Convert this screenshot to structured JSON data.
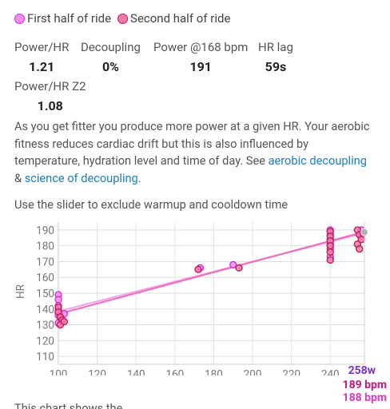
{
  "legend": {
    "first_half": "First half of ride",
    "second_half": "Second half of ride"
  },
  "stats": {
    "power_hr": {
      "label": "Power/HR",
      "value": "1.21"
    },
    "decoupling": {
      "label": "Decoupling",
      "value": "0%"
    },
    "power_at_hr": {
      "label": "Power @168 bpm",
      "value": "191"
    },
    "hr_lag": {
      "label": "HR lag",
      "value": "59s"
    },
    "power_hr_z2": {
      "label": "Power/HR Z2",
      "value": "1.08"
    }
  },
  "description": {
    "text": "As you get fitter you produce more power at a given HR. Your aerobic fitness reduces cardiac drift but this is also influenced by temperature, hydration level and time of day. See ",
    "link1": "aerobic decoupling",
    "between": " & ",
    "link2": "science of decoupling",
    "end": "."
  },
  "slider_hint": "Use the slider to exclude warmup and cooldown time",
  "readout": {
    "power": "258w",
    "hr_first": "189 bpm",
    "hr_second": "188 bpm"
  },
  "bottom_text": "This chart shows the ...",
  "colors": {
    "first_half": "#d230d2",
    "second_half": "#c8185e",
    "trend_first": "#f2a6ec",
    "trend_second": "#f06cb8"
  },
  "chart_data": {
    "type": "scatter",
    "xlabel": "",
    "ylabel": "HR",
    "xlim": [
      100,
      258
    ],
    "ylim": [
      105,
      195
    ],
    "x_ticks": [
      100,
      120,
      140,
      160,
      180,
      200,
      220,
      240
    ],
    "y_ticks": [
      110,
      120,
      130,
      140,
      150,
      160,
      170,
      180,
      190
    ],
    "series": [
      {
        "name": "First half of ride",
        "points": [
          [
            100,
            149
          ],
          [
            100,
            146
          ],
          [
            100,
            142
          ],
          [
            100,
            139
          ],
          [
            100,
            136
          ],
          [
            101,
            134
          ],
          [
            100,
            131
          ],
          [
            103,
            137
          ],
          [
            173,
            166
          ],
          [
            190,
            168
          ],
          [
            240,
            190
          ],
          [
            240,
            187
          ],
          [
            240,
            184
          ],
          [
            240,
            181
          ],
          [
            240,
            178
          ],
          [
            240,
            173
          ],
          [
            256,
            190
          ],
          [
            256,
            186
          ]
        ]
      },
      {
        "name": "Second half of ride",
        "points": [
          [
            100,
            141
          ],
          [
            100,
            138
          ],
          [
            101,
            135
          ],
          [
            102,
            133
          ],
          [
            101,
            130
          ],
          [
            103,
            132
          ],
          [
            172,
            165
          ],
          [
            193,
            166
          ],
          [
            240,
            189
          ],
          [
            240,
            186
          ],
          [
            240,
            183
          ],
          [
            240,
            180
          ],
          [
            240,
            176
          ],
          [
            240,
            171
          ],
          [
            254,
            190
          ],
          [
            255,
            187
          ],
          [
            256,
            184
          ],
          [
            254,
            181
          ],
          [
            255,
            178
          ],
          [
            257,
            188
          ]
        ]
      }
    ],
    "trendlines": [
      {
        "name": "First half of ride",
        "x": [
          100,
          258
        ],
        "y": [
          138.5,
          188.2
        ]
      },
      {
        "name": "Second half of ride",
        "x": [
          100,
          258
        ],
        "y": [
          136.8,
          189.0
        ]
      }
    ],
    "cursor_x": 258,
    "grid": true
  }
}
